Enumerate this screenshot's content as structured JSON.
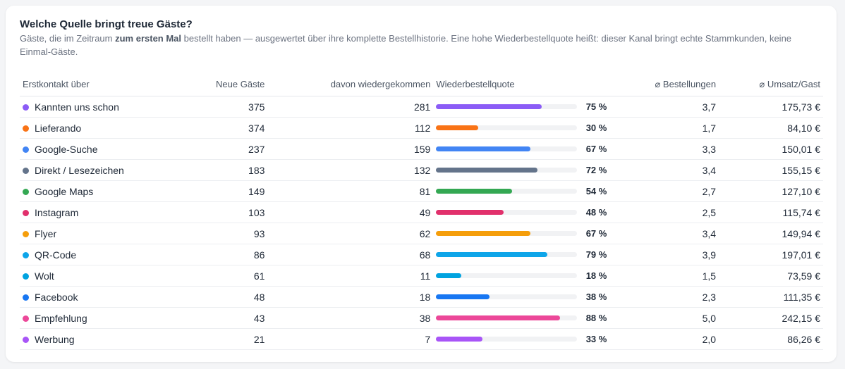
{
  "card": {
    "title": "Welche Quelle bringt treue Gäste?",
    "subtitle_pre": "Gäste, die im Zeitraum ",
    "subtitle_bold": "zum ersten Mal",
    "subtitle_post": " bestellt haben — ausgewertet über ihre komplette Bestellhistorie. Eine hohe Wiederbestellquote heißt: dieser Kanal bringt echte Stammkunden, keine Einmal-Gäste."
  },
  "table": {
    "headers": {
      "source": "Erstkontakt über",
      "new_guests": "Neue Gäste",
      "returned": "davon wiedergekommen",
      "quote": "Wiederbestellquote",
      "orders": "⌀ Bestellungen",
      "revenue": "⌀ Umsatz/Gast"
    },
    "rows": [
      {
        "source": "Kannten uns schon",
        "color": "#8b5cf6",
        "new_guests": "375",
        "returned": "281",
        "quote_value": 75,
        "quote": "75 %",
        "orders": "3,7",
        "revenue": "175,73 €"
      },
      {
        "source": "Lieferando",
        "color": "#f97316",
        "new_guests": "374",
        "returned": "112",
        "quote_value": 30,
        "quote": "30 %",
        "orders": "1,7",
        "revenue": "84,10 €"
      },
      {
        "source": "Google-Suche",
        "color": "#4285f4",
        "new_guests": "237",
        "returned": "159",
        "quote_value": 67,
        "quote": "67 %",
        "orders": "3,3",
        "revenue": "150,01 €"
      },
      {
        "source": "Direkt / Lesezeichen",
        "color": "#64748b",
        "new_guests": "183",
        "returned": "132",
        "quote_value": 72,
        "quote": "72 %",
        "orders": "3,4",
        "revenue": "155,15 €"
      },
      {
        "source": "Google Maps",
        "color": "#34a853",
        "new_guests": "149",
        "returned": "81",
        "quote_value": 54,
        "quote": "54 %",
        "orders": "2,7",
        "revenue": "127,10 €"
      },
      {
        "source": "Instagram",
        "color": "#e1306c",
        "new_guests": "103",
        "returned": "49",
        "quote_value": 48,
        "quote": "48 %",
        "orders": "2,5",
        "revenue": "115,74 €"
      },
      {
        "source": "Flyer",
        "color": "#f59e0b",
        "new_guests": "93",
        "returned": "62",
        "quote_value": 67,
        "quote": "67 %",
        "orders": "3,4",
        "revenue": "149,94 €"
      },
      {
        "source": "QR-Code",
        "color": "#0ea5e9",
        "new_guests": "86",
        "returned": "68",
        "quote_value": 79,
        "quote": "79 %",
        "orders": "3,9",
        "revenue": "197,01 €"
      },
      {
        "source": "Wolt",
        "color": "#00a3e0",
        "new_guests": "61",
        "returned": "11",
        "quote_value": 18,
        "quote": "18 %",
        "orders": "1,5",
        "revenue": "73,59 €"
      },
      {
        "source": "Facebook",
        "color": "#1877f2",
        "new_guests": "48",
        "returned": "18",
        "quote_value": 38,
        "quote": "38 %",
        "orders": "2,3",
        "revenue": "111,35 €"
      },
      {
        "source": "Empfehlung",
        "color": "#ec4899",
        "new_guests": "43",
        "returned": "38",
        "quote_value": 88,
        "quote": "88 %",
        "orders": "5,0",
        "revenue": "242,15 €"
      },
      {
        "source": "Werbung",
        "color": "#a855f7",
        "new_guests": "21",
        "returned": "7",
        "quote_value": 33,
        "quote": "33 %",
        "orders": "2,0",
        "revenue": "86,26 €"
      }
    ]
  }
}
